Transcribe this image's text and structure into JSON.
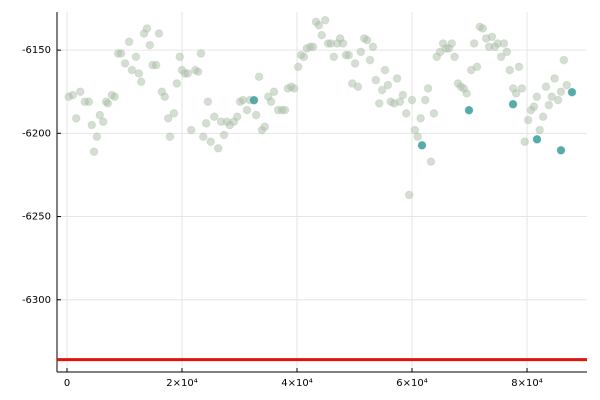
{
  "chart_data": {
    "type": "scatter",
    "xlim": [
      -1740,
      90430
    ],
    "ylim": [
      -6343.4,
      -6127.1
    ],
    "xticks": [
      0,
      {
        "value": 20000,
        "label": "2×10⁴"
      },
      {
        "value": 40000,
        "label": "4×10⁴"
      },
      {
        "value": 60000,
        "label": "6×10⁴"
      },
      {
        "value": 80000,
        "label": "8×10⁴"
      }
    ],
    "yticks": [
      -6300,
      -6250,
      -6200,
      -6150
    ],
    "grid": true,
    "hline": {
      "value": -6336,
      "color": "#e3120b"
    },
    "series": [
      {
        "color": "#a9bda6",
        "opacity": 0.5,
        "x": [
          300,
          1000,
          1600,
          2300,
          3100,
          3800,
          4300,
          4700,
          5200,
          5700,
          6300,
          6800,
          7100,
          7800,
          8300,
          8900,
          9400,
          10100,
          10800,
          11300,
          12000,
          12500,
          12900,
          13400,
          13900,
          14400,
          14900,
          15500,
          16000,
          16500,
          17000,
          17600,
          17900,
          18600,
          19100,
          19600,
          20000,
          20500,
          21000,
          21600,
          22300,
          22800,
          23300,
          23700,
          24200,
          24500,
          25000,
          25600,
          26300,
          26800,
          27300,
          27800,
          28300,
          29000,
          29600,
          30100,
          30600,
          31300,
          31800,
          32900,
          33400,
          33900,
          34400,
          35000,
          35500,
          36000,
          36700,
          37400,
          37900,
          38400,
          39000,
          39500,
          40200,
          40700,
          41200,
          41700,
          42300,
          42800,
          43300,
          43800,
          44300,
          44900,
          45400,
          45900,
          46400,
          47000,
          47500,
          48000,
          48500,
          49000,
          49600,
          50100,
          50600,
          51100,
          51700,
          52200,
          52700,
          53200,
          53700,
          54300,
          54800,
          55300,
          55800,
          56300,
          56900,
          57400,
          57900,
          58400,
          59000,
          59500,
          60000,
          60500,
          61000,
          61500,
          62300,
          62800,
          63300,
          63800,
          64300,
          64900,
          65400,
          65900,
          66400,
          66900,
          67400,
          68000,
          68500,
          69000,
          69500,
          70300,
          70800,
          71300,
          71800,
          72300,
          72900,
          73400,
          73900,
          74400,
          74900,
          75500,
          76000,
          76500,
          77000,
          77600,
          78100,
          78600,
          79100,
          79600,
          80200,
          80700,
          81200,
          81700,
          82200,
          82800,
          83300,
          83800,
          84300,
          84800,
          85400,
          85900,
          86400,
          86900
        ],
        "values": [
          -6178,
          -6177,
          -6191,
          -6175,
          -6181,
          -6181,
          -6195,
          -6211,
          -6202,
          -6189,
          -6193,
          -6181,
          -6182,
          -6177,
          -6178,
          -6152,
          -6152,
          -6158,
          -6145,
          -6162,
          -6154,
          -6164,
          -6169,
          -6140,
          -6137,
          -6147,
          -6159,
          -6159,
          -6140,
          -6175,
          -6178,
          -6191,
          -6202,
          -6188,
          -6170,
          -6154,
          -6162,
          -6164,
          -6164,
          -6198,
          -6162,
          -6163,
          -6152,
          -6202,
          -6194,
          -6181,
          -6205,
          -6190,
          -6209,
          -6193,
          -6201,
          -6193,
          -6195,
          -6193,
          -6190,
          -6181,
          -6180,
          -6186,
          -6180,
          -6189,
          -6166,
          -6198,
          -6196,
          -6178,
          -6181,
          -6175,
          -6186,
          -6186,
          -6186,
          -6173,
          -6172,
          -6173,
          -6160,
          -6153,
          -6154,
          -6149,
          -6148,
          -6148,
          -6133,
          -6135,
          -6141,
          -6132,
          -6146,
          -6146,
          -6154,
          -6146,
          -6143,
          -6146,
          -6153,
          -6153,
          -6170,
          -6158,
          -6172,
          -6151,
          -6143,
          -6144,
          -6156,
          -6148,
          -6168,
          -6182,
          -6174,
          -6162,
          -6171,
          -6181,
          -6182,
          -6167,
          -6181,
          -6177,
          -6188,
          -6237,
          -6180,
          -6198,
          -6202,
          -6191,
          -6180,
          -6173,
          -6217,
          -6188,
          -6154,
          -6151,
          -6146,
          -6149,
          -6149,
          -6146,
          -6154,
          -6170,
          -6172,
          -6173,
          -6176,
          -6162,
          -6146,
          -6160,
          -6136,
          -6137,
          -6143,
          -6148,
          -6142,
          -6148,
          -6146,
          -6154,
          -6146,
          -6151,
          -6162,
          -6173,
          -6176,
          -6160,
          -6173,
          -6205,
          -6192,
          -6186,
          -6184,
          -6178,
          -6198,
          -6190,
          -6172,
          -6183,
          -6178,
          -6167,
          -6180,
          -6175,
          -6156,
          -6171
        ]
      },
      {
        "color": "#3a9e9c",
        "opacity": 0.85,
        "x": [
          32520,
          61735,
          69908,
          77559,
          81733,
          85907,
          87820
        ],
        "values": [
          -6180.1,
          -6207.2,
          -6186.1,
          -6182.5,
          -6203.6,
          -6210.2,
          -6175.3
        ]
      }
    ]
  }
}
